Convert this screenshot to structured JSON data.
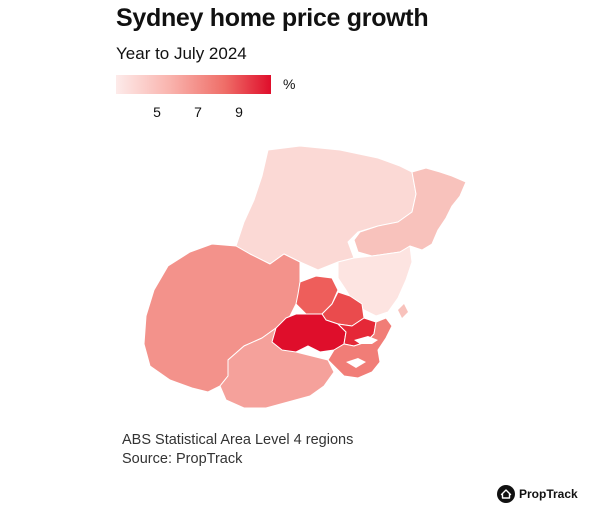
{
  "title": "Sydney home price growth",
  "subtitle": "Year to July 2024",
  "legend": {
    "unit": "%",
    "ticks": [
      "5",
      "7",
      "9"
    ],
    "color_low": "#fdebea",
    "color_high": "#df0e2b"
  },
  "notes": {
    "regions": "ABS Statistical Area Level 4 regions",
    "source": "Source: PropTrack"
  },
  "brand": {
    "name": "PropTrack",
    "icon": "house-icon"
  }
}
